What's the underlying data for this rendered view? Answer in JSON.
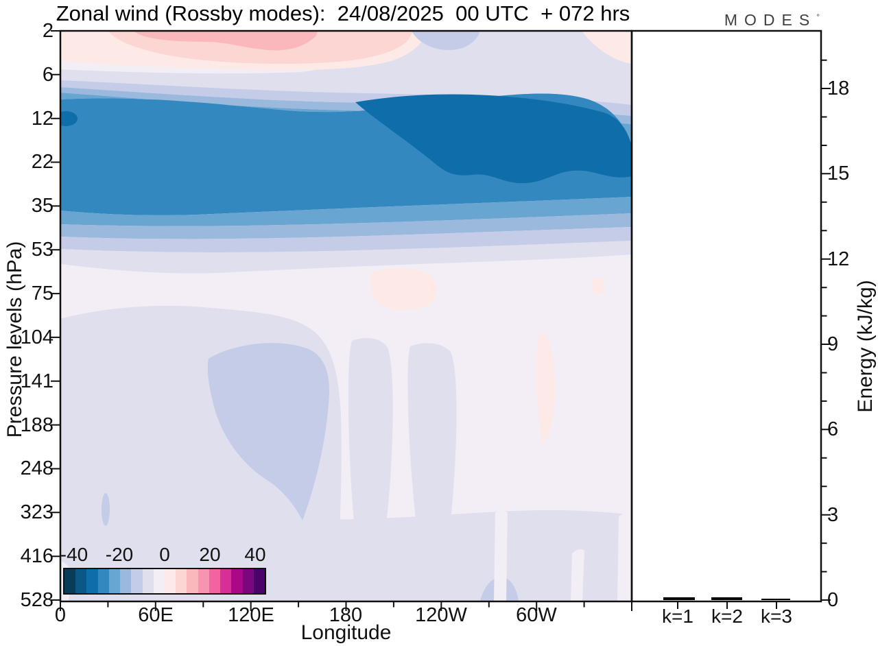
{
  "title": "Zonal wind (Rossby modes):  24/08/2025  00 UTC  + 072 hrs",
  "logo": {
    "text": "MODES",
    "degree_mark": "°"
  },
  "main_plot": {
    "xlabel": "Longitude",
    "ylabel": "Pressure levels (hPa)",
    "x_ticks": [
      "0",
      "60E",
      "120E",
      "180",
      "120W",
      "60W"
    ],
    "y_ticks": [
      "2",
      "6",
      "12",
      "22",
      "35",
      "53",
      "75",
      "104",
      "141",
      "188",
      "248",
      "323",
      "416",
      "528"
    ]
  },
  "colorbar": {
    "labels": [
      "-40",
      "-20",
      "0",
      "20",
      "40"
    ],
    "min": -45,
    "max": 45,
    "step": 5,
    "colors": [
      "#0a3b57",
      "#0d5787",
      "#0f6daa",
      "#3389bf",
      "#69a5d1",
      "#9ab9dd",
      "#c5cce7",
      "#dfdfee",
      "#f3eef5",
      "#fdeae6",
      "#fbd6d2",
      "#fab8bd",
      "#f893b1",
      "#f263a2",
      "#d82f97",
      "#ab0786",
      "#7c067e",
      "#4c0369"
    ]
  },
  "energy_panel": {
    "ylabel": "Energy (kJ/kg)",
    "y_ticks": [
      "0",
      "3",
      "6",
      "9",
      "12",
      "15",
      "18"
    ],
    "ylim": [
      0,
      20
    ],
    "categories": [
      "k=1",
      "k=2",
      "k=3"
    ],
    "values": [
      0.1,
      0.1,
      0.06
    ],
    "bar_color": "#000000"
  },
  "chart_data": [
    {
      "type": "heatmap",
      "subtype": "filled contour, longitude-pressure cross-section of zonal wind (Rossby modes)",
      "title": "Zonal wind (Rossby modes):  24/08/2025  00 UTC  + 072 hrs",
      "xlabel": "Longitude",
      "ylabel": "Pressure levels (hPa)",
      "x_tick_labels": [
        "0",
        "60E",
        "120E",
        "180",
        "120W",
        "60W"
      ],
      "x_range_degrees": [
        0,
        360
      ],
      "y_tick_levels_hPa": [
        2,
        6,
        12,
        22,
        35,
        53,
        75,
        104,
        141,
        188,
        248,
        323,
        416,
        528
      ],
      "y_scale": "log-like (listed levels evenly spaced, 2 hPa at top, 528 hPa at bottom)",
      "grid": false,
      "colorbar": {
        "tick_labels": [
          -40,
          -20,
          0,
          20,
          40
        ],
        "levels": [
          -45,
          -40,
          -35,
          -30,
          -25,
          -20,
          -15,
          -10,
          -5,
          0,
          5,
          10,
          15,
          20,
          25,
          30,
          35,
          40,
          45
        ],
        "colors": [
          "#0a3b57",
          "#0d5787",
          "#0f6daa",
          "#3389bf",
          "#69a5d1",
          "#9ab9dd",
          "#c5cce7",
          "#dfdfee",
          "#f3eef5",
          "#fdeae6",
          "#fbd6d2",
          "#fab8bd",
          "#f893b1",
          "#f263a2",
          "#d82f97",
          "#ab0786",
          "#7c067e",
          "#4c0369"
        ],
        "position": "inset, lower-left of plot"
      },
      "features": [
        {
          "region": "2-4 hPa, ~10E-130E",
          "value_range": [
            5,
            15
          ],
          "note": "pink westerly cap at top of plot, strongest (~15) near 60E-100E at 2 hPa"
        },
        {
          "region": "2-5 hPa, ~150E-60W",
          "value_range": [
            -10,
            -5
          ],
          "note": "pale lavender at top right, small pale-blue blob near 180"
        },
        {
          "region": "2-5 hPa, far right edge (~20W-0)",
          "value_range": [
            0,
            5
          ],
          "note": "pale peach corner patch"
        },
        {
          "region": "7-45 hPa, all longitudes",
          "value_range": [
            -35,
            -20
          ],
          "note": "strong easterly (deep blue) stratospheric band"
        },
        {
          "region": "9-30 hPa, ~170E-30W",
          "value_range": [
            -40,
            -30
          ],
          "note": "darkest blue core of the easterly band; small dark pocket also at far left edge near 12 hPa"
        },
        {
          "region": "55-530 hPa, most longitudes",
          "value_range": [
            -10,
            0
          ],
          "note": "very pale lavender/white weak easterlies fill the troposphere"
        },
        {
          "region": "100-400 hPa, ~20E-150E",
          "value_range": [
            -15,
            -5
          ],
          "note": "light blue-lavender blob (weak tropospheric easterly), core near 60E-120E"
        },
        {
          "region": "~70-90 hPa near 180",
          "value_range": [
            0,
            5
          ],
          "note": "small pale peach westerly spot; thin peach streak near 115W around 100-200 hPa"
        }
      ]
    },
    {
      "type": "bar",
      "categories": [
        "k=1",
        "k=2",
        "k=3"
      ],
      "values": [
        0.1,
        0.1,
        0.06
      ],
      "ylabel": "Energy (kJ/kg)",
      "ylim": [
        0,
        20
      ],
      "yticks": [
        0,
        3,
        6,
        9,
        12,
        15,
        18
      ],
      "bar_color": "#000000",
      "legend": "none",
      "note": "all three bars are nearly zero, flat against the baseline"
    }
  ]
}
